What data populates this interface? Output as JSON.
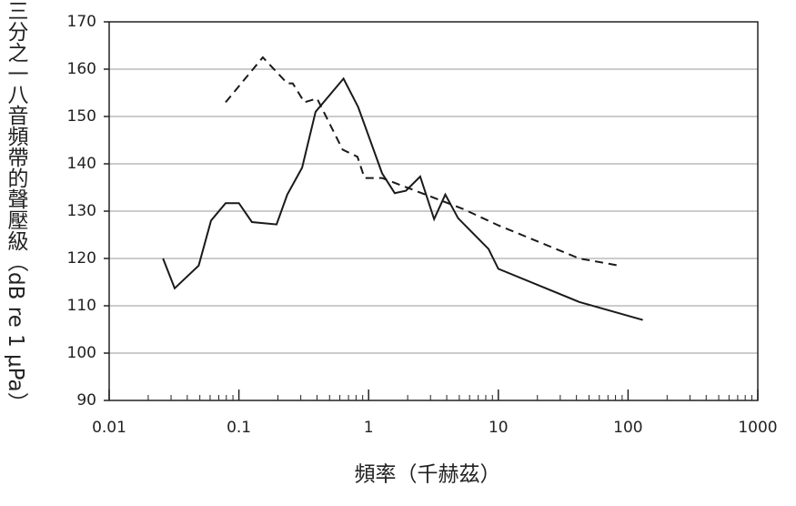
{
  "chart_data": {
    "type": "line",
    "xlabel": "頻率（千赫茲）",
    "ylabel": "三分之一八音頻帶的聲壓級（dB re 1 μPa）",
    "xscale": "log",
    "xlim": [
      0.01,
      1000
    ],
    "xticks": [
      0.01,
      0.1,
      1,
      10,
      100,
      1000
    ],
    "ylim": [
      90,
      170
    ],
    "yticks": [
      90,
      100,
      110,
      120,
      130,
      140,
      150,
      160,
      170
    ],
    "grid": "y",
    "series": [
      {
        "color": "#1a1a1a",
        "style": "solid",
        "x": [
          0.026,
          0.032,
          0.049,
          0.061,
          0.079,
          0.1,
          0.126,
          0.195,
          0.236,
          0.307,
          0.39,
          0.64,
          0.83,
          1.27,
          1.59,
          1.94,
          2.5,
          3.2,
          3.9,
          4.9,
          8.4,
          10,
          42,
          130
        ],
        "values": [
          120,
          113.7,
          118.5,
          128,
          131.7,
          131.7,
          127.7,
          127.2,
          133.5,
          139.2,
          151,
          158,
          152,
          138,
          133.8,
          134.3,
          137.3,
          128.3,
          133.5,
          128.5,
          122,
          117.8,
          110.8,
          107
        ]
      },
      {
        "color": "#1a1a1a",
        "style": "dashed",
        "x": [
          0.079,
          0.153,
          0.236,
          0.26,
          0.32,
          0.4,
          0.63,
          0.82,
          0.93,
          1.27,
          5.3,
          10,
          42,
          85
        ],
        "values": [
          153,
          162.5,
          157,
          157,
          153,
          153.8,
          143,
          141.5,
          137,
          137,
          130.5,
          127,
          120,
          118.5
        ]
      }
    ]
  }
}
